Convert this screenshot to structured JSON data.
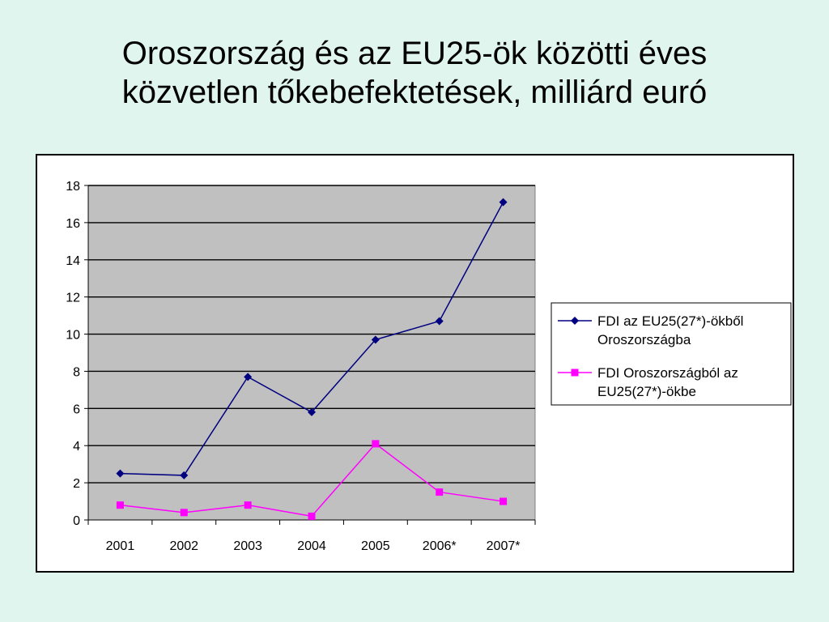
{
  "title": {
    "line1": "Oroszország és az EU25-ök közötti éves",
    "line2": "közvetlen tőkebefektetések, milliárd euró"
  },
  "chart_data": {
    "type": "line",
    "title": "Oroszország és az EU25-ök közötti éves közvetlen tőkebefektetések, milliárd euró",
    "categories": [
      "2001",
      "2002",
      "2003",
      "2004",
      "2005",
      "2006*",
      "2007*"
    ],
    "ylim": [
      0,
      18
    ],
    "yticks": [
      0,
      2,
      4,
      6,
      8,
      10,
      12,
      14,
      16,
      18
    ],
    "grid": true,
    "plot_background": "#c0c0c0",
    "legend_position": "right",
    "series": [
      {
        "name": "FDI az EU25(27*)-ökből Oroszországba",
        "legend_lines": [
          "FDI az EU25(27*)-ökből",
          "Oroszországba"
        ],
        "color": "#000080",
        "marker": "diamond",
        "values": [
          2.5,
          2.4,
          7.7,
          5.8,
          9.7,
          10.7,
          17.1
        ]
      },
      {
        "name": "FDI Oroszországból az EU25(27*)-ökbe",
        "legend_lines": [
          "FDI Oroszországból az",
          "EU25(27*)-ökbe"
        ],
        "color": "#ff00ff",
        "marker": "square",
        "values": [
          0.8,
          0.4,
          0.8,
          0.2,
          4.1,
          1.5,
          1.0
        ]
      }
    ]
  }
}
